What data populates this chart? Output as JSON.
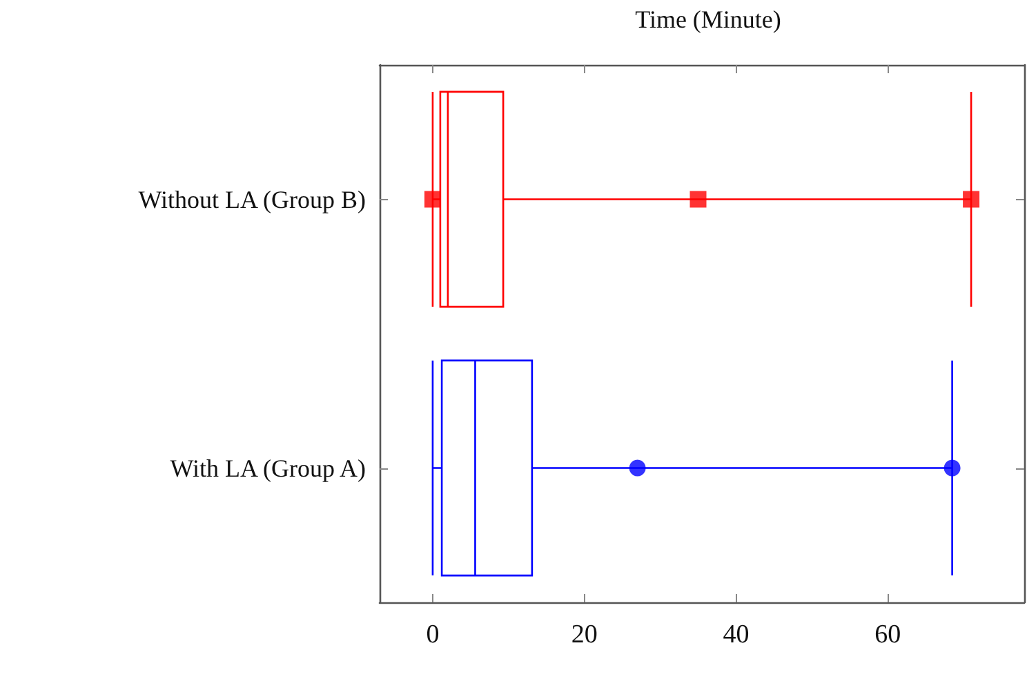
{
  "chart_data": {
    "type": "box",
    "title": "Time (Minute)",
    "orientation": "horizontal",
    "categories": [
      "Without LA (Group B)",
      "With LA (Group A)"
    ],
    "xlim": [
      -7,
      78
    ],
    "xticks": [
      0,
      20,
      40,
      60
    ],
    "series": [
      {
        "color": "#ff0000",
        "marker": "square",
        "boxes": [
          {
            "low": 0,
            "q1": 1,
            "median": 2,
            "q3": 9.3,
            "high": 71,
            "outliers": [
              0,
              35,
              71
            ]
          },
          null
        ]
      },
      {
        "color": "#0000ff",
        "marker": "circle",
        "boxes": [
          null,
          {
            "low": 0,
            "q1": 1.2,
            "median": 5.6,
            "q3": 13.1,
            "high": 68.5,
            "outliers": [
              27,
              68.5
            ]
          }
        ]
      }
    ]
  }
}
